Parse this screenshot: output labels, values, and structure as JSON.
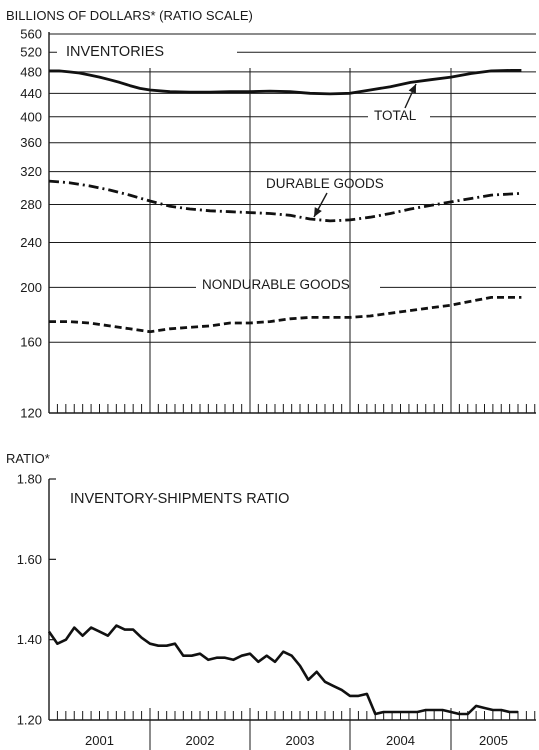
{
  "chart_data": [
    {
      "type": "line",
      "title": "INVENTORIES",
      "ylabel": "BILLIONS OF DOLLARS* (RATIO SCALE)",
      "scale": "log",
      "ylim": [
        120,
        560
      ],
      "yticks": [
        560,
        520,
        480,
        440,
        400,
        360,
        320,
        280,
        240,
        200,
        160,
        120
      ],
      "x_range": [
        2001.0,
        2005.95
      ],
      "grid": true,
      "series": [
        {
          "name": "TOTAL",
          "style": "solid",
          "x": [
            2001.0,
            2001.1,
            2001.2,
            2001.3,
            2001.4,
            2001.5,
            2001.6,
            2001.7,
            2001.8,
            2001.9,
            2002.0,
            2002.2,
            2002.4,
            2002.6,
            2002.8,
            2003.0,
            2003.2,
            2003.4,
            2003.6,
            2003.8,
            2004.0,
            2004.2,
            2004.4,
            2004.6,
            2004.8,
            2005.0,
            2005.2,
            2005.4,
            2005.6,
            2005.7
          ],
          "values": [
            482,
            482,
            480,
            478,
            474,
            470,
            465,
            460,
            454,
            449,
            446,
            443,
            442,
            442,
            443,
            443,
            444,
            443,
            440,
            439,
            440,
            446,
            452,
            460,
            465,
            470,
            477,
            482,
            483,
            483
          ]
        },
        {
          "name": "DURABLE GOODS",
          "style": "dashdot",
          "x": [
            2001.0,
            2001.2,
            2001.4,
            2001.6,
            2001.8,
            2002.0,
            2002.2,
            2002.4,
            2002.6,
            2002.8,
            2003.0,
            2003.2,
            2003.4,
            2003.6,
            2003.8,
            2004.0,
            2004.2,
            2004.4,
            2004.6,
            2004.8,
            2005.0,
            2005.2,
            2005.4,
            2005.7
          ],
          "values": [
            308,
            306,
            302,
            297,
            291,
            284,
            278,
            275,
            273,
            272,
            271,
            270,
            268,
            264,
            262,
            263,
            266,
            270,
            275,
            279,
            283,
            287,
            291,
            293
          ]
        },
        {
          "name": "NONDURABLE GOODS",
          "style": "dashed",
          "x": [
            2001.0,
            2001.2,
            2001.4,
            2001.6,
            2001.8,
            2002.0,
            2002.2,
            2002.4,
            2002.6,
            2002.8,
            2003.0,
            2003.2,
            2003.4,
            2003.6,
            2003.8,
            2004.0,
            2004.2,
            2004.4,
            2004.6,
            2004.8,
            2005.0,
            2005.2,
            2005.4,
            2005.7
          ],
          "values": [
            174,
            174,
            173,
            171,
            169,
            167,
            169,
            170,
            171,
            173,
            173,
            174,
            176,
            177,
            177,
            177,
            178,
            180,
            182,
            184,
            186,
            189,
            192,
            192
          ]
        }
      ],
      "annotations": [
        "TOTAL",
        "DURABLE GOODS",
        "NONDURABLE GOODS"
      ]
    },
    {
      "type": "line",
      "title": "INVENTORY-SHIPMENTS RATIO",
      "ylabel": "RATIO*",
      "ylim": [
        1.2,
        1.8
      ],
      "yticks": [
        1.8,
        1.6,
        1.4,
        1.2
      ],
      "ytick_labels": [
        "1.80",
        "1.60",
        "1.40",
        "1.20"
      ],
      "x_range": [
        2001.0,
        2005.95
      ],
      "xticks": [
        "2001",
        "2002",
        "2003",
        "2004",
        "2005"
      ],
      "grid": true,
      "series": [
        {
          "name": "",
          "style": "solid",
          "x": [
            2001.0,
            2001.083,
            2001.167,
            2001.25,
            2001.333,
            2001.417,
            2001.5,
            2001.583,
            2001.667,
            2001.75,
            2001.833,
            2001.917,
            2002.0,
            2002.083,
            2002.167,
            2002.25,
            2002.333,
            2002.417,
            2002.5,
            2002.583,
            2002.667,
            2002.75,
            2002.833,
            2002.917,
            2003.0,
            2003.083,
            2003.167,
            2003.25,
            2003.333,
            2003.417,
            2003.5,
            2003.583,
            2003.667,
            2003.75,
            2003.833,
            2003.917,
            2004.0,
            2004.083,
            2004.167,
            2004.25,
            2004.333,
            2004.417,
            2004.5,
            2004.583,
            2004.667,
            2004.75,
            2004.833,
            2004.917,
            2005.0,
            2005.083,
            2005.167,
            2005.25,
            2005.333,
            2005.417,
            2005.5,
            2005.583,
            2005.667
          ],
          "values": [
            1.42,
            1.39,
            1.4,
            1.43,
            1.41,
            1.43,
            1.42,
            1.41,
            1.435,
            1.425,
            1.425,
            1.405,
            1.39,
            1.385,
            1.385,
            1.39,
            1.36,
            1.36,
            1.365,
            1.35,
            1.355,
            1.355,
            1.35,
            1.36,
            1.365,
            1.345,
            1.36,
            1.345,
            1.37,
            1.36,
            1.335,
            1.3,
            1.32,
            1.295,
            1.285,
            1.275,
            1.26,
            1.26,
            1.265,
            1.215,
            1.22,
            1.22,
            1.22,
            1.22,
            1.22,
            1.225,
            1.225,
            1.225,
            1.22,
            1.215,
            1.215,
            1.235,
            1.23,
            1.225,
            1.225,
            1.22,
            1.22
          ]
        }
      ]
    }
  ]
}
